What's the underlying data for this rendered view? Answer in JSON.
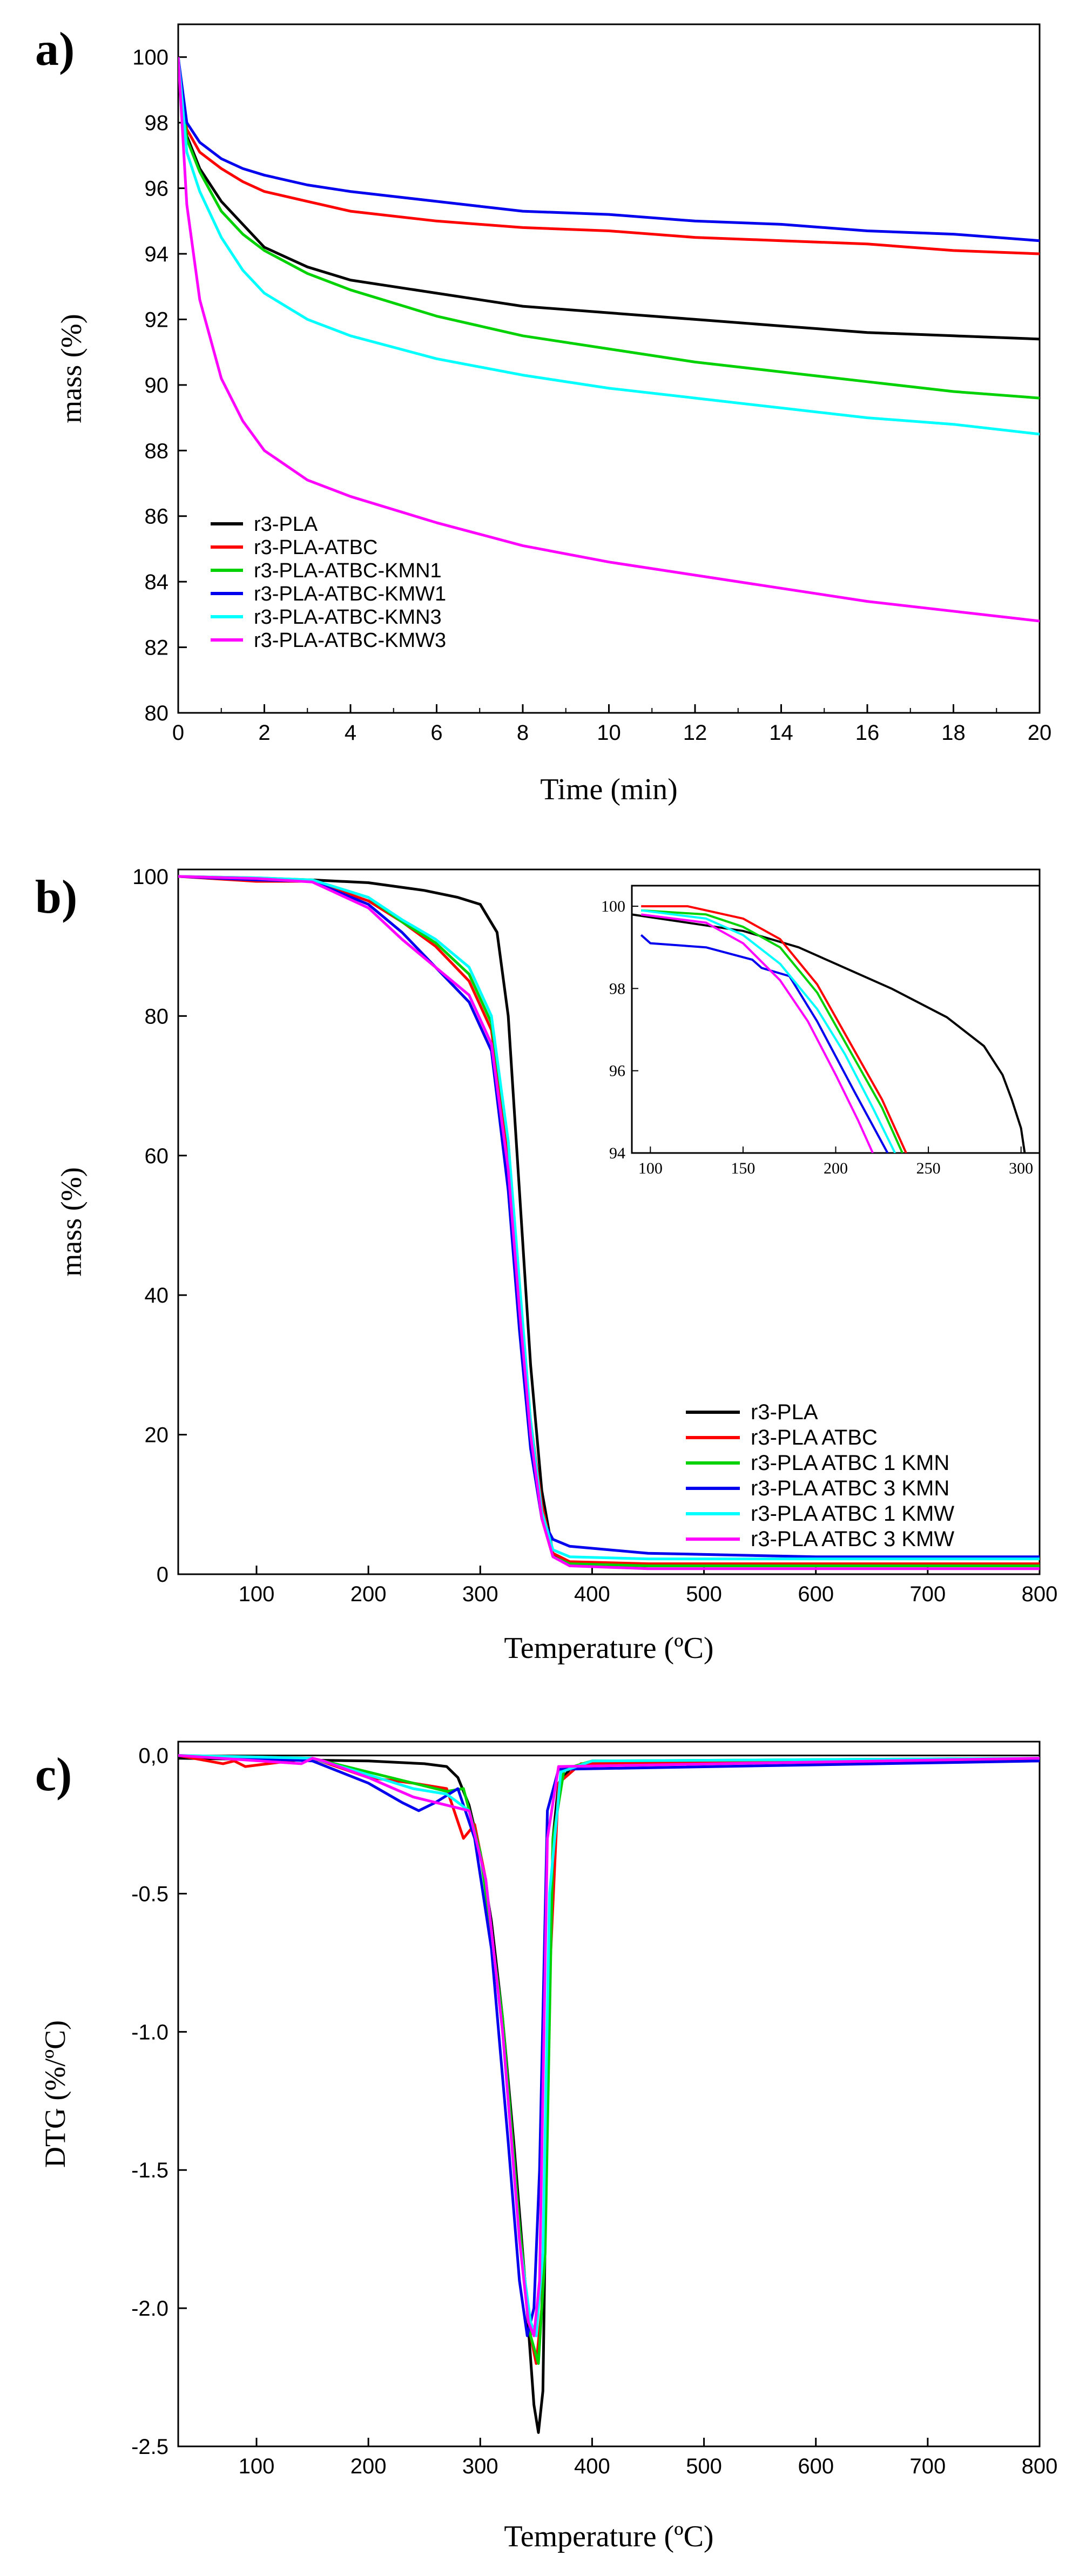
{
  "chart_data": [
    {
      "panel_label": "a)",
      "type": "line",
      "xlabel": "Time (min)",
      "ylabel": "mass (%)",
      "xlim": [
        0,
        20
      ],
      "ylim": [
        80,
        101
      ],
      "x_ticks": [
        0,
        2,
        4,
        6,
        8,
        10,
        12,
        14,
        16,
        18,
        20
      ],
      "y_ticks": [
        80,
        82,
        84,
        86,
        88,
        90,
        92,
        94,
        96,
        98,
        100
      ],
      "legend_position": "bottom-left",
      "series": [
        {
          "name": "r3-PLA",
          "color": "#000000",
          "x": [
            0,
            0.2,
            0.5,
            1,
            1.5,
            2,
            3,
            4,
            6,
            8,
            10,
            12,
            14,
            16,
            18,
            20
          ],
          "y": [
            100,
            97.6,
            96.6,
            95.6,
            94.9,
            94.2,
            93.6,
            93.2,
            92.8,
            92.4,
            92.2,
            92.0,
            91.8,
            91.6,
            91.5,
            91.4
          ]
        },
        {
          "name": "r3-PLA-ATBC",
          "color": "#ff0000",
          "x": [
            0,
            0.2,
            0.5,
            1,
            1.5,
            2,
            3,
            4,
            6,
            8,
            10,
            12,
            14,
            16,
            18,
            20
          ],
          "y": [
            100,
            97.8,
            97.1,
            96.6,
            96.2,
            95.9,
            95.6,
            95.3,
            95.0,
            94.8,
            94.7,
            94.5,
            94.4,
            94.3,
            94.1,
            94.0
          ]
        },
        {
          "name": "r3-PLA-ATBC-KMN1",
          "color": "#00d100",
          "x": [
            0,
            0.2,
            0.5,
            1,
            1.5,
            2,
            3,
            4,
            6,
            8,
            10,
            12,
            14,
            16,
            18,
            20
          ],
          "y": [
            100,
            97.5,
            96.5,
            95.3,
            94.6,
            94.1,
            93.4,
            92.9,
            92.1,
            91.5,
            91.1,
            90.7,
            90.4,
            90.1,
            89.8,
            89.6
          ]
        },
        {
          "name": "r3-PLA-ATBC-KMW1",
          "color": "#0000ee",
          "x": [
            0,
            0.2,
            0.5,
            1,
            1.5,
            2,
            3,
            4,
            6,
            8,
            10,
            12,
            14,
            16,
            18,
            20
          ],
          "y": [
            100,
            98.0,
            97.4,
            96.9,
            96.6,
            96.4,
            96.1,
            95.9,
            95.6,
            95.3,
            95.2,
            95.0,
            94.9,
            94.7,
            94.6,
            94.4
          ]
        },
        {
          "name": "r3-PLA-ATBC-KMN3",
          "color": "#00ffff",
          "x": [
            0,
            0.2,
            0.5,
            1,
            1.5,
            2,
            3,
            4,
            6,
            8,
            10,
            12,
            14,
            16,
            18,
            20
          ],
          "y": [
            100,
            97.1,
            95.9,
            94.5,
            93.5,
            92.8,
            92.0,
            91.5,
            90.8,
            90.3,
            89.9,
            89.6,
            89.3,
            89.0,
            88.8,
            88.5
          ]
        },
        {
          "name": "r3-PLA-ATBC-KMW3",
          "color": "#ff00ff",
          "x": [
            0,
            0.2,
            0.5,
            1,
            1.5,
            2,
            3,
            4,
            6,
            8,
            10,
            12,
            14,
            16,
            18,
            20
          ],
          "y": [
            100,
            95.5,
            92.6,
            90.2,
            88.9,
            88.0,
            87.1,
            86.6,
            85.8,
            85.1,
            84.6,
            84.2,
            83.8,
            83.4,
            83.1,
            82.8
          ]
        }
      ]
    },
    {
      "panel_label": "b)",
      "type": "line",
      "xlabel": "Temperature (ºC)",
      "ylabel": "mass (%)",
      "xlim": [
        30,
        800
      ],
      "ylim": [
        0,
        101
      ],
      "x_ticks": [
        100,
        200,
        300,
        400,
        500,
        600,
        700,
        800
      ],
      "y_ticks": [
        0,
        20,
        40,
        60,
        80,
        100
      ],
      "legend_position": "bottom-right",
      "series": [
        {
          "name": "r3-PLA",
          "color": "#000000",
          "x": [
            30,
            150,
            200,
            250,
            280,
            300,
            315,
            325,
            335,
            345,
            355,
            365,
            380,
            450,
            600,
            800
          ],
          "y": [
            100,
            99.5,
            99.1,
            98,
            97,
            96,
            92,
            80,
            55,
            30,
            12,
            3,
            1.5,
            1.2,
            1.2,
            1.2
          ]
        },
        {
          "name": "r3-PLA ATBC",
          "color": "#ff0000",
          "x": [
            30,
            100,
            150,
            200,
            230,
            260,
            290,
            310,
            325,
            335,
            345,
            355,
            365,
            380,
            450,
            600,
            800
          ],
          "y": [
            100,
            99.3,
            99.3,
            96.5,
            93.5,
            90,
            85,
            78,
            60,
            40,
            22,
            10,
            3,
            1.8,
            1.5,
            1.5,
            1.5
          ]
        },
        {
          "name": "r3-PLA ATBC 1 KMN",
          "color": "#00d100",
          "x": [
            30,
            100,
            150,
            200,
            230,
            260,
            290,
            310,
            325,
            335,
            345,
            355,
            365,
            380,
            450,
            600,
            800
          ],
          "y": [
            100,
            99.8,
            99.5,
            97,
            93.5,
            90.5,
            86,
            79,
            62,
            40,
            20,
            8,
            2.5,
            1.5,
            1.2,
            1.2,
            1.2
          ]
        },
        {
          "name": "r3-PLA ATBC 3 KMN",
          "color": "#0000ee",
          "x": [
            30,
            100,
            150,
            200,
            230,
            260,
            290,
            310,
            325,
            335,
            345,
            355,
            365,
            380,
            450,
            600,
            800
          ],
          "y": [
            100,
            99.5,
            99.3,
            96,
            92,
            87,
            82,
            75,
            55,
            35,
            18,
            8,
            5,
            4,
            3,
            2.5,
            2.5
          ]
        },
        {
          "name": "r3-PLA ATBC 1 KMW",
          "color": "#00ffff",
          "x": [
            30,
            100,
            150,
            200,
            230,
            260,
            290,
            310,
            325,
            335,
            345,
            355,
            365,
            380,
            450,
            600,
            800
          ],
          "y": [
            100,
            99.8,
            99.5,
            97,
            93.8,
            91,
            87,
            80,
            62,
            42,
            22,
            9,
            3.5,
            2.5,
            2.2,
            2.2,
            2.2
          ]
        },
        {
          "name": "r3-PLA ATBC 3 KMW",
          "color": "#ff00ff",
          "x": [
            30,
            100,
            150,
            200,
            230,
            260,
            290,
            310,
            325,
            335,
            345,
            355,
            365,
            380,
            450,
            600,
            800
          ],
          "y": [
            100,
            99.7,
            99.2,
            95.5,
            91,
            87,
            83,
            76,
            58,
            38,
            20,
            8,
            2.5,
            1.2,
            0.8,
            0.8,
            0.8
          ]
        }
      ],
      "inset": {
        "xlim": [
          90,
          310
        ],
        "ylim": [
          94,
          100.5
        ],
        "x_ticks": [
          100,
          150,
          200,
          250,
          300
        ],
        "y_ticks": [
          94,
          96,
          98,
          100
        ],
        "series": [
          {
            "name": "r3-PLA",
            "color": "#000000",
            "x": [
              90,
              150,
              180,
              200,
              230,
              260,
              280,
              290,
              295,
              300,
              302
            ],
            "y": [
              99.8,
              99.4,
              99.0,
              98.6,
              98.0,
              97.3,
              96.6,
              95.9,
              95.3,
              94.6,
              94
            ]
          },
          {
            "name": "r3-PLA ATBC",
            "color": "#ff0000",
            "x": [
              95,
              120,
              150,
              170,
              190,
              210,
              225,
              238
            ],
            "y": [
              100,
              100,
              99.7,
              99.2,
              98.1,
              96.5,
              95.3,
              94
            ]
          },
          {
            "name": "r3-PLA ATBC 1 KMN",
            "color": "#00d100",
            "x": [
              95,
              130,
              150,
              170,
              190,
              210,
              225,
              236
            ],
            "y": [
              99.9,
              99.8,
              99.5,
              99.0,
              97.9,
              96.3,
              95.1,
              94
            ]
          },
          {
            "name": "r3-PLA ATBC 3 KMN",
            "color": "#0000ee",
            "x": [
              95,
              100,
              130,
              155,
              160,
              175,
              190,
              210,
              228
            ],
            "y": [
              99.3,
              99.1,
              99.0,
              98.7,
              98.5,
              98.3,
              97.2,
              95.5,
              94
            ]
          },
          {
            "name": "r3-PLA ATBC 1 KMW",
            "color": "#00ffff",
            "x": [
              95,
              130,
              150,
              170,
              190,
              205,
              220,
              232
            ],
            "y": [
              99.9,
              99.7,
              99.3,
              98.6,
              97.5,
              96.4,
              95.1,
              94
            ]
          },
          {
            "name": "r3-PLA ATBC 3 KMW",
            "color": "#ff00ff",
            "x": [
              95,
              130,
              150,
              170,
              185,
              200,
              212,
              220
            ],
            "y": [
              99.8,
              99.6,
              99.1,
              98.2,
              97.2,
              95.9,
              94.8,
              94
            ]
          }
        ]
      }
    },
    {
      "panel_label": "c)",
      "type": "line",
      "xlabel": "Temperature (ºC)",
      "ylabel": "DTG (%/ºC)",
      "xlim": [
        30,
        800
      ],
      "ylim": [
        -2.5,
        0.05
      ],
      "x_ticks": [
        100,
        200,
        300,
        400,
        500,
        600,
        700,
        800
      ],
      "y_ticks": [
        0.0,
        -0.5,
        -1.0,
        -1.5,
        -2.0,
        -2.5
      ],
      "y_tick_labels": [
        "0,0",
        "-0.5",
        "-1.0",
        "-1.5",
        "-2.0",
        "-2.5"
      ],
      "series": [
        {
          "name": "r3-PLA",
          "color": "#000000",
          "x": [
            30,
            200,
            250,
            270,
            280,
            290,
            300,
            310,
            320,
            330,
            340,
            348,
            352,
            356,
            360,
            365,
            370,
            380,
            400,
            800
          ],
          "y": [
            -0.01,
            -0.02,
            -0.03,
            -0.04,
            -0.08,
            -0.18,
            -0.35,
            -0.6,
            -0.95,
            -1.4,
            -1.9,
            -2.35,
            -2.45,
            -2.3,
            -1.2,
            -0.3,
            -0.1,
            -0.05,
            -0.02,
            -0.02
          ]
        },
        {
          "name": "r3-PLA ATBC",
          "color": "#ff0000",
          "x": [
            30,
            70,
            80,
            90,
            150,
            200,
            240,
            270,
            285,
            295,
            305,
            320,
            335,
            345,
            350,
            355,
            362,
            370,
            390,
            800
          ],
          "y": [
            0,
            -0.03,
            -0.02,
            -0.04,
            -0.01,
            -0.08,
            -0.1,
            -0.12,
            -0.3,
            -0.25,
            -0.45,
            -1.0,
            -1.7,
            -2.1,
            -2.2,
            -2.0,
            -0.8,
            -0.1,
            -0.03,
            -0.02
          ]
        },
        {
          "name": "r3-PLA ATBC 1 KMN",
          "color": "#00d100",
          "x": [
            30,
            150,
            200,
            240,
            270,
            285,
            300,
            320,
            335,
            345,
            352,
            358,
            365,
            375,
            400,
            800
          ],
          "y": [
            0,
            -0.01,
            -0.06,
            -0.1,
            -0.13,
            -0.12,
            -0.35,
            -0.95,
            -1.7,
            -2.1,
            -2.2,
            -1.8,
            -0.3,
            -0.05,
            -0.02,
            -0.01
          ]
        },
        {
          "name": "r3-PLA ATBC 3 KMN",
          "color": "#0000ee",
          "x": [
            30,
            150,
            200,
            230,
            245,
            260,
            280,
            295,
            310,
            325,
            335,
            342,
            348,
            353,
            360,
            370,
            800
          ],
          "y": [
            0,
            -0.02,
            -0.1,
            -0.17,
            -0.2,
            -0.17,
            -0.12,
            -0.3,
            -0.7,
            -1.4,
            -1.9,
            -2.1,
            -2.0,
            -1.5,
            -0.2,
            -0.05,
            -0.02
          ]
        },
        {
          "name": "r3-PLA ATBC 1 KMW",
          "color": "#00ffff",
          "x": [
            30,
            150,
            200,
            240,
            270,
            290,
            305,
            320,
            335,
            345,
            350,
            356,
            362,
            372,
            400,
            800
          ],
          "y": [
            0,
            -0.01,
            -0.07,
            -0.12,
            -0.14,
            -0.2,
            -0.45,
            -1.0,
            -1.75,
            -2.05,
            -2.1,
            -1.8,
            -0.5,
            -0.06,
            -0.02,
            -0.01
          ]
        },
        {
          "name": "r3-PLA ATBC 3 KMW",
          "color": "#ff00ff",
          "x": [
            30,
            140,
            150,
            160,
            200,
            240,
            270,
            290,
            305,
            320,
            335,
            343,
            348,
            353,
            360,
            370,
            800
          ],
          "y": [
            0,
            -0.03,
            -0.01,
            -0.02,
            -0.08,
            -0.15,
            -0.18,
            -0.2,
            -0.45,
            -1.0,
            -1.75,
            -2.05,
            -2.1,
            -1.9,
            -0.3,
            -0.04,
            -0.01
          ]
        }
      ]
    }
  ]
}
